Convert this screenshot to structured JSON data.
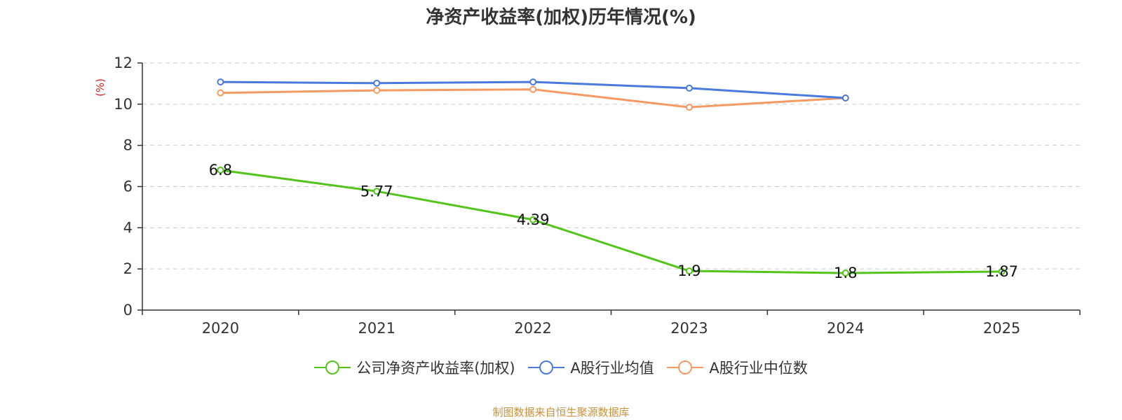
{
  "chart_data": {
    "type": "line",
    "title": "净资产收益率(加权)历年情况(%)",
    "ylabel": "(%)",
    "xlabel": "",
    "categories": [
      "2020",
      "2021",
      "2022",
      "2023",
      "2024",
      "2025"
    ],
    "ylim": [
      0,
      12
    ],
    "yticks": [
      0,
      2,
      4,
      6,
      8,
      10,
      12
    ],
    "grid": true,
    "legend_position": "bottom",
    "series": [
      {
        "name": "公司净资产收益率(加权)",
        "color": "#52c41a",
        "values": [
          6.8,
          5.77,
          4.39,
          1.9,
          1.8,
          1.87
        ],
        "labels": [
          "6.8",
          "5.77",
          "4.39",
          "1.9",
          "1.8",
          "1.87"
        ]
      },
      {
        "name": "A股行业均值",
        "color": "#4a7bdc",
        "values": [
          11.08,
          11.02,
          11.08,
          10.78,
          10.3,
          null
        ]
      },
      {
        "name": "A股行业中位数",
        "color": "#f59a62",
        "values": [
          10.55,
          10.67,
          10.72,
          9.85,
          10.3,
          null
        ]
      }
    ],
    "source": "制图数据来自恒生聚源数据库"
  }
}
